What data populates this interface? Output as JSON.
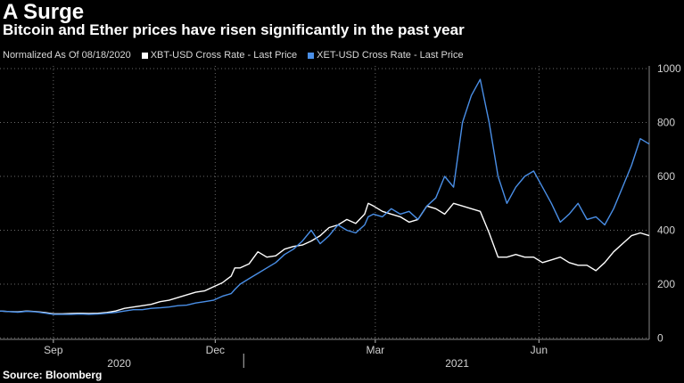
{
  "header": {
    "title": "A Surge",
    "subtitle": "Bitcoin and Ether prices have risen significantly in the past year"
  },
  "legend": {
    "normalized_label": "Normalized As Of 08/18/2020",
    "items": [
      {
        "label": "XBT-USD Cross Rate - Last Price",
        "color": "#ffffff"
      },
      {
        "label": "XET-USD Cross Rate - Last Price",
        "color": "#4a8fe7"
      }
    ]
  },
  "footer": {
    "source": "Source: Bloomberg"
  },
  "chart_data": {
    "type": "line",
    "title": "A Surge",
    "subtitle": "Bitcoin and Ether prices have risen significantly in the past year",
    "xlabel": "",
    "ylabel": "",
    "x_unit": "days since 2020-08-18",
    "xlim": [
      0,
      365
    ],
    "ylim": [
      -5,
      1010
    ],
    "y_ticks": [
      0,
      200,
      400,
      600,
      800,
      1000
    ],
    "month_ticks": [
      {
        "label": "Sep",
        "x": 30
      },
      {
        "label": "Dec",
        "x": 121
      },
      {
        "label": "Mar",
        "x": 211
      },
      {
        "label": "Jun",
        "x": 303
      }
    ],
    "year_labels": [
      {
        "label": "2020",
        "x": 67
      },
      {
        "label": "2021",
        "x": 257
      }
    ],
    "year_divider_x": 137,
    "grid": true,
    "series": [
      {
        "name": "XBT-USD Cross Rate - Last Price",
        "color": "#ffffff",
        "x": [
          0,
          5,
          10,
          15,
          20,
          25,
          30,
          35,
          40,
          45,
          50,
          55,
          60,
          65,
          70,
          75,
          80,
          85,
          90,
          95,
          100,
          105,
          110,
          115,
          120,
          125,
          130,
          132,
          135,
          140,
          145,
          150,
          155,
          160,
          165,
          170,
          175,
          180,
          185,
          190,
          195,
          200,
          205,
          207,
          210,
          215,
          220,
          225,
          230,
          235,
          240,
          245,
          250,
          255,
          260,
          265,
          270,
          275,
          280,
          285,
          290,
          295,
          300,
          305,
          310,
          315,
          320,
          325,
          330,
          335,
          340,
          345,
          350,
          355,
          360,
          365
        ],
        "values": [
          100,
          98,
          97,
          100,
          98,
          95,
          90,
          90,
          91,
          92,
          91,
          92,
          95,
          100,
          110,
          115,
          120,
          125,
          135,
          140,
          150,
          160,
          170,
          175,
          190,
          205,
          230,
          260,
          260,
          275,
          320,
          300,
          305,
          330,
          340,
          345,
          360,
          380,
          410,
          420,
          440,
          425,
          460,
          500,
          490,
          470,
          460,
          450,
          430,
          440,
          490,
          480,
          460,
          500,
          490,
          480,
          470,
          390,
          300,
          300,
          310,
          300,
          300,
          280,
          290,
          300,
          280,
          270,
          270,
          250,
          280,
          320,
          350,
          380,
          390,
          380
        ]
      },
      {
        "name": "XET-USD Cross Rate - Last Price",
        "color": "#4a8fe7",
        "x": [
          0,
          5,
          10,
          15,
          20,
          25,
          30,
          35,
          40,
          45,
          50,
          55,
          60,
          65,
          70,
          75,
          80,
          85,
          90,
          95,
          100,
          105,
          110,
          115,
          120,
          125,
          130,
          132,
          135,
          140,
          145,
          150,
          155,
          160,
          165,
          170,
          175,
          180,
          185,
          190,
          195,
          200,
          205,
          207,
          210,
          215,
          220,
          225,
          230,
          235,
          240,
          245,
          250,
          255,
          260,
          265,
          270,
          275,
          280,
          285,
          290,
          295,
          300,
          305,
          310,
          315,
          320,
          325,
          330,
          335,
          340,
          345,
          350,
          355,
          360,
          365
        ],
        "values": [
          100,
          98,
          96,
          99,
          97,
          93,
          88,
          88,
          88,
          89,
          88,
          89,
          92,
          95,
          100,
          105,
          105,
          110,
          112,
          115,
          120,
          122,
          130,
          135,
          140,
          155,
          165,
          180,
          200,
          220,
          240,
          260,
          280,
          310,
          330,
          360,
          400,
          350,
          380,
          420,
          400,
          390,
          420,
          450,
          460,
          450,
          480,
          460,
          470,
          440,
          490,
          520,
          600,
          560,
          800,
          900,
          960,
          800,
          600,
          500,
          560,
          600,
          620,
          560,
          500,
          430,
          460,
          500,
          440,
          450,
          420,
          480,
          560,
          640,
          740,
          720
        ]
      }
    ]
  }
}
